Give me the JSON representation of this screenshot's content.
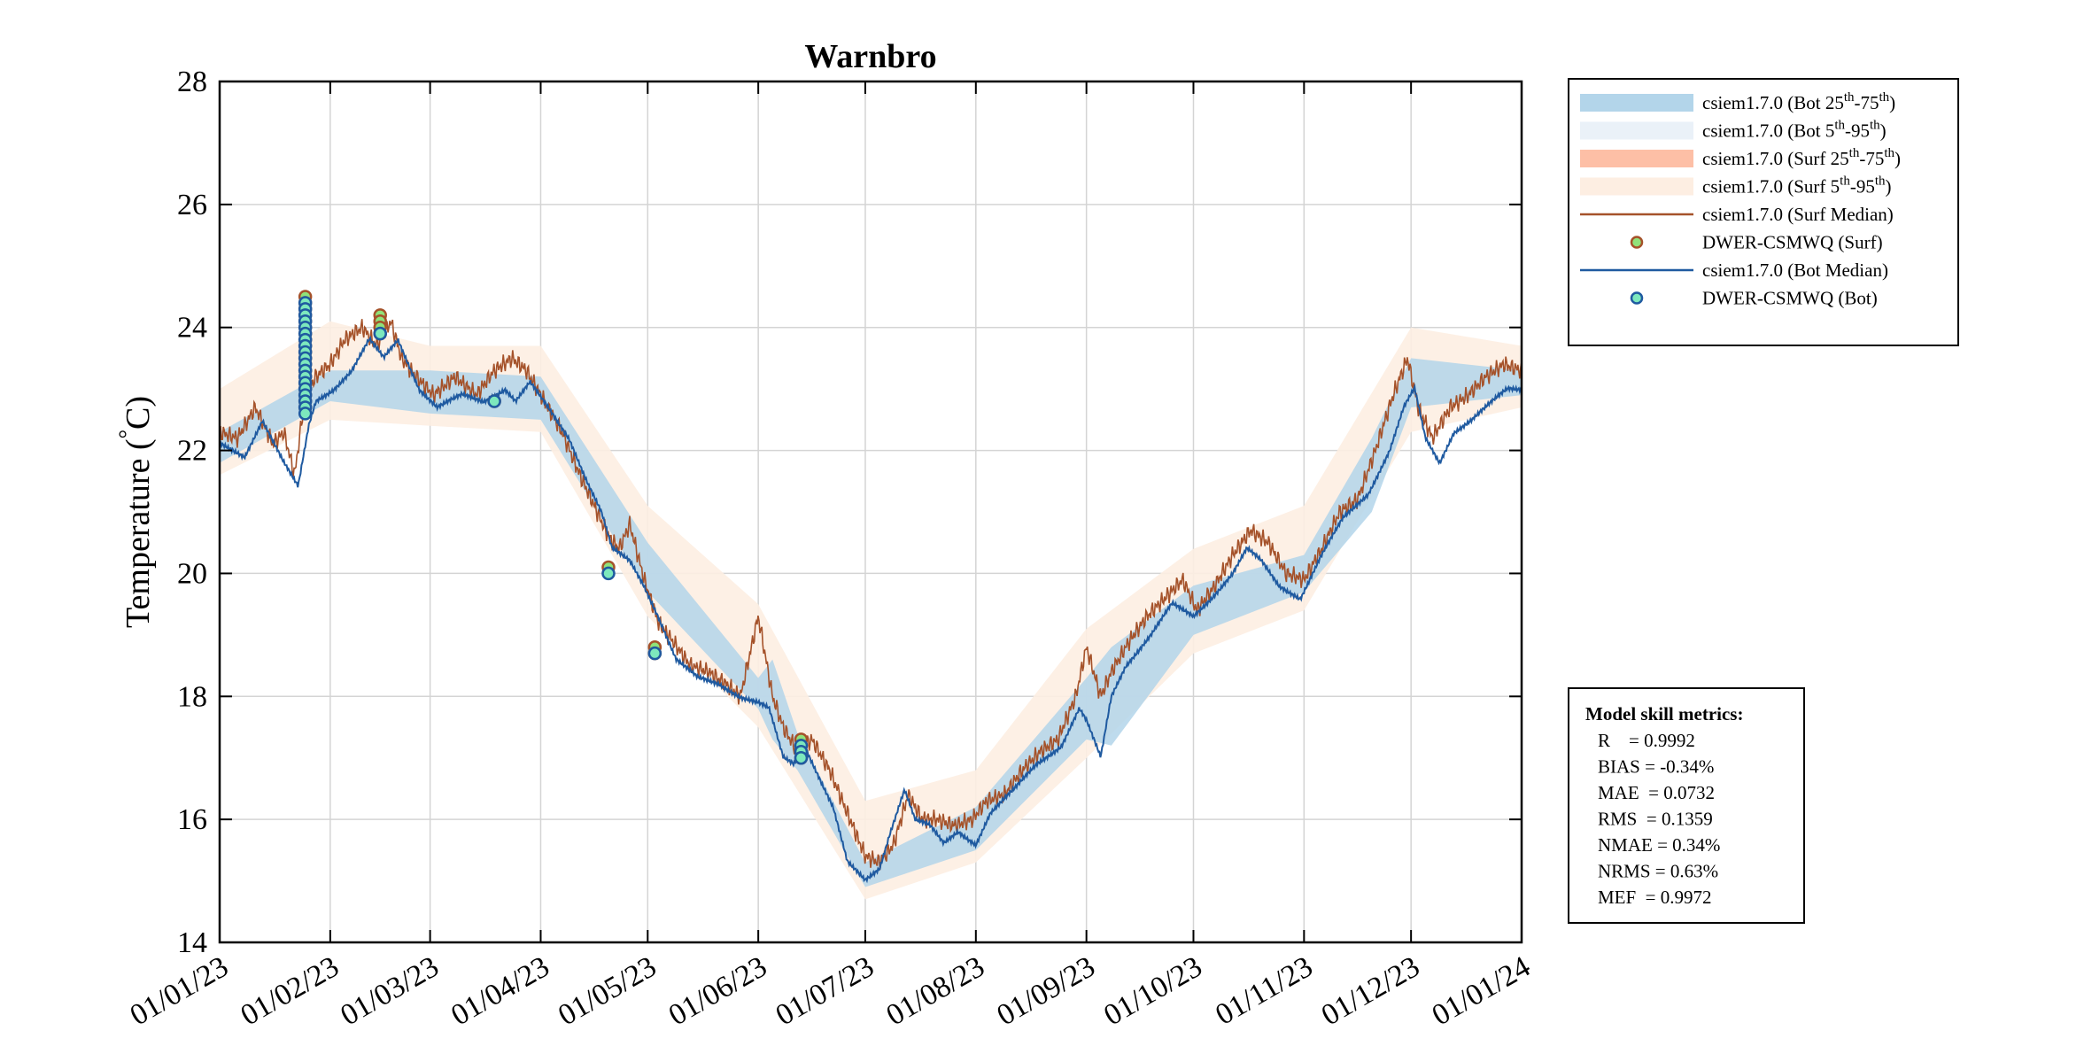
{
  "chart_data": {
    "type": "line",
    "title": "Warnbro",
    "ylabel": "Temperature (°C)",
    "ylabel_parts": {
      "main": "Temperature (",
      "degree": "°",
      "unit": "C)"
    },
    "ylim": [
      14,
      28
    ],
    "yticks": [
      14,
      16,
      18,
      20,
      22,
      24,
      26,
      28
    ],
    "xlim": [
      "2023-01-01",
      "2024-01-01"
    ],
    "xticks": [
      {
        "date": "2023-01-01",
        "label": "01/01/23"
      },
      {
        "date": "2023-02-01",
        "label": "01/02/23"
      },
      {
        "date": "2023-03-01",
        "label": "01/03/23"
      },
      {
        "date": "2023-04-01",
        "label": "01/04/23"
      },
      {
        "date": "2023-05-01",
        "label": "01/05/23"
      },
      {
        "date": "2023-06-01",
        "label": "01/06/23"
      },
      {
        "date": "2023-07-01",
        "label": "01/07/23"
      },
      {
        "date": "2023-08-01",
        "label": "01/08/23"
      },
      {
        "date": "2023-09-01",
        "label": "01/09/23"
      },
      {
        "date": "2023-10-01",
        "label": "01/10/23"
      },
      {
        "date": "2023-11-01",
        "label": "01/11/23"
      },
      {
        "date": "2023-12-01",
        "label": "01/12/23"
      },
      {
        "date": "2024-01-01",
        "label": "01/01/24"
      }
    ],
    "grid": true,
    "legend_position": "outside-top-right",
    "legend": [
      {
        "kind": "band",
        "color": "#b3d5ea",
        "text": "csiem1.7.0 (Bot 25",
        "sup1": "th",
        "mid": "-75",
        "sup2": "th",
        "end": ")"
      },
      {
        "kind": "band",
        "color": "#eaf1f8",
        "text": "csiem1.7.0 (Bot 5",
        "sup1": "th",
        "mid": "-95",
        "sup2": "th",
        "end": ")"
      },
      {
        "kind": "band",
        "color": "#fdbfa6",
        "text": "csiem1.7.0 (Surf 25",
        "sup1": "th",
        "mid": "-75",
        "sup2": "th",
        "end": ")"
      },
      {
        "kind": "band",
        "color": "#fdeee2",
        "text": "csiem1.7.0 (Surf 5",
        "sup1": "th",
        "mid": "-95",
        "sup2": "th",
        "end": ")"
      },
      {
        "kind": "line",
        "color": "#a5522a",
        "text": "csiem1.7.0 (Surf Median)"
      },
      {
        "kind": "marker",
        "edge": "#a5522a",
        "face": "#90e27a",
        "text": "DWER-CSMWQ (Surf)"
      },
      {
        "kind": "line",
        "color": "#1f5aa0",
        "text": "csiem1.7.0 (Bot Median)"
      },
      {
        "kind": "marker",
        "edge": "#1f5aa0",
        "face": "#7de8bd",
        "text": "DWER-CSMWQ (Bot)"
      }
    ],
    "colors": {
      "surf_median": "#a5522a",
      "bot_median": "#1f5aa0",
      "bot_25_75": "#b3d5ea",
      "bot_5_95": "#eaf1f8",
      "surf_25_75": "#fdbfa6",
      "surf_5_95": "#fdeee2",
      "obs_surf_edge": "#a5522a",
      "obs_surf_face": "#90e27a",
      "obs_bot_edge": "#1f5aa0",
      "obs_bot_face": "#7de8bd"
    },
    "series": [
      {
        "id": "bot_median",
        "x": [
          "2023-01-01",
          "2023-01-08",
          "2023-01-13",
          "2023-01-19",
          "2023-01-23",
          "2023-01-26",
          "2023-01-28",
          "2023-02-02",
          "2023-02-07",
          "2023-02-12",
          "2023-02-16",
          "2023-02-20",
          "2023-02-26",
          "2023-03-03",
          "2023-03-10",
          "2023-03-16",
          "2023-03-22",
          "2023-03-25",
          "2023-03-29",
          "2023-04-03",
          "2023-04-09",
          "2023-04-14",
          "2023-04-18",
          "2023-04-21",
          "2023-04-26",
          "2023-04-30",
          "2023-05-04",
          "2023-05-09",
          "2023-05-15",
          "2023-05-21",
          "2023-05-27",
          "2023-06-01",
          "2023-06-04",
          "2023-06-08",
          "2023-06-11",
          "2023-06-14",
          "2023-06-18",
          "2023-06-22",
          "2023-06-26",
          "2023-07-01",
          "2023-07-05",
          "2023-07-08",
          "2023-07-12",
          "2023-07-15",
          "2023-07-19",
          "2023-07-23",
          "2023-07-27",
          "2023-08-01",
          "2023-08-05",
          "2023-08-12",
          "2023-08-18",
          "2023-08-25",
          "2023-08-30",
          "2023-09-01",
          "2023-09-05",
          "2023-09-08",
          "2023-09-12",
          "2023-09-19",
          "2023-09-25",
          "2023-10-01",
          "2023-10-06",
          "2023-10-12",
          "2023-10-16",
          "2023-10-20",
          "2023-10-25",
          "2023-10-31",
          "2023-11-06",
          "2023-11-12",
          "2023-11-19",
          "2023-11-25",
          "2023-11-29",
          "2023-12-02",
          "2023-12-05",
          "2023-12-09",
          "2023-12-13",
          "2023-12-18",
          "2023-12-24",
          "2023-12-28",
          "2024-01-01"
        ],
        "values": [
          22.1,
          21.9,
          22.5,
          21.8,
          21.4,
          22.4,
          22.8,
          23.0,
          23.3,
          23.8,
          23.5,
          23.8,
          23.0,
          22.7,
          22.9,
          22.8,
          23.0,
          22.8,
          23.1,
          22.7,
          22.2,
          21.5,
          21.0,
          20.4,
          20.2,
          19.8,
          19.3,
          18.6,
          18.3,
          18.2,
          18.0,
          17.9,
          17.8,
          17.0,
          16.9,
          17.2,
          16.7,
          16.2,
          15.3,
          15.0,
          15.2,
          15.8,
          16.5,
          16.0,
          15.9,
          15.6,
          15.8,
          15.6,
          16.1,
          16.5,
          16.9,
          17.2,
          17.8,
          17.6,
          17.0,
          18.0,
          18.5,
          19.0,
          19.5,
          19.3,
          19.6,
          20.0,
          20.4,
          20.2,
          19.8,
          19.6,
          20.3,
          20.9,
          21.3,
          22.0,
          22.7,
          23.0,
          22.2,
          21.8,
          22.3,
          22.5,
          22.8,
          23.0,
          23.0
        ]
      },
      {
        "id": "surf_median",
        "x": [
          "2023-01-01",
          "2023-01-06",
          "2023-01-11",
          "2023-01-16",
          "2023-01-19",
          "2023-01-22",
          "2023-01-25",
          "2023-01-28",
          "2023-02-01",
          "2023-02-05",
          "2023-02-10",
          "2023-02-14",
          "2023-02-18",
          "2023-02-21",
          "2023-02-25",
          "2023-03-02",
          "2023-03-08",
          "2023-03-14",
          "2023-03-19",
          "2023-03-24",
          "2023-03-28",
          "2023-04-02",
          "2023-04-07",
          "2023-04-12",
          "2023-04-16",
          "2023-04-20",
          "2023-04-23",
          "2023-04-26",
          "2023-04-30",
          "2023-05-04",
          "2023-05-08",
          "2023-05-13",
          "2023-05-18",
          "2023-05-23",
          "2023-05-27",
          "2023-06-01",
          "2023-06-05",
          "2023-06-08",
          "2023-06-12",
          "2023-06-16",
          "2023-06-21",
          "2023-06-26",
          "2023-07-01",
          "2023-07-05",
          "2023-07-09",
          "2023-07-13",
          "2023-07-17",
          "2023-07-21",
          "2023-07-26",
          "2023-07-31",
          "2023-08-04",
          "2023-08-09",
          "2023-08-14",
          "2023-08-19",
          "2023-08-24",
          "2023-08-29",
          "2023-09-01",
          "2023-09-05",
          "2023-09-08",
          "2023-09-13",
          "2023-09-18",
          "2023-09-23",
          "2023-09-28",
          "2023-10-02",
          "2023-10-07",
          "2023-10-12",
          "2023-10-17",
          "2023-10-22",
          "2023-10-27",
          "2023-11-01",
          "2023-11-06",
          "2023-11-11",
          "2023-11-16",
          "2023-11-21",
          "2023-11-26",
          "2023-11-30",
          "2023-12-03",
          "2023-12-07",
          "2023-12-12",
          "2023-12-17",
          "2023-12-22",
          "2023-12-27",
          "2024-01-01"
        ],
        "values": [
          22.3,
          22.2,
          22.7,
          22.1,
          22.3,
          21.6,
          22.9,
          23.2,
          23.4,
          23.8,
          24.0,
          23.7,
          24.1,
          23.5,
          23.2,
          22.9,
          23.2,
          22.9,
          23.3,
          23.5,
          23.3,
          22.8,
          22.3,
          21.6,
          21.1,
          20.6,
          20.4,
          20.8,
          19.9,
          19.2,
          18.9,
          18.5,
          18.4,
          18.2,
          18.0,
          19.3,
          18.0,
          17.5,
          17.1,
          17.3,
          16.8,
          16.1,
          15.4,
          15.3,
          15.6,
          16.4,
          16.0,
          16.0,
          15.9,
          16.0,
          16.3,
          16.4,
          16.8,
          17.1,
          17.3,
          18.0,
          18.8,
          18.0,
          18.4,
          18.9,
          19.3,
          19.6,
          19.9,
          19.4,
          19.8,
          20.3,
          20.7,
          20.5,
          20.0,
          19.9,
          20.4,
          21.0,
          21.2,
          22.0,
          22.9,
          23.5,
          22.7,
          22.2,
          22.7,
          22.9,
          23.2,
          23.4,
          23.3
        ]
      },
      {
        "id": "bot_25_75",
        "x": [
          "2023-01-01",
          "2023-02-01",
          "2023-03-01",
          "2023-04-01",
          "2023-05-01",
          "2023-06-01",
          "2023-06-05",
          "2023-06-12",
          "2023-07-01",
          "2023-08-01",
          "2023-09-01",
          "2023-09-08",
          "2023-10-01",
          "2023-11-01",
          "2023-11-20",
          "2023-12-01",
          "2024-01-01"
        ],
        "lower": [
          21.8,
          22.8,
          22.6,
          22.5,
          19.7,
          17.8,
          17.3,
          16.8,
          14.9,
          15.5,
          17.3,
          17.2,
          19.0,
          19.7,
          21.0,
          22.7,
          22.9
        ],
        "upper": [
          22.3,
          23.3,
          23.3,
          23.2,
          20.5,
          18.3,
          18.6,
          17.4,
          15.3,
          16.2,
          18.3,
          18.8,
          19.8,
          20.3,
          22.2,
          23.5,
          23.3
        ]
      },
      {
        "id": "surf_5_95",
        "x": [
          "2023-01-01",
          "2023-02-01",
          "2023-03-01",
          "2023-04-01",
          "2023-05-01",
          "2023-06-01",
          "2023-07-01",
          "2023-08-01",
          "2023-09-01",
          "2023-10-01",
          "2023-11-01",
          "2023-12-01",
          "2024-01-01"
        ],
        "lower": [
          21.6,
          22.5,
          22.4,
          22.3,
          19.3,
          17.5,
          14.7,
          15.3,
          17.0,
          18.7,
          19.4,
          22.3,
          22.7
        ],
        "upper": [
          23.0,
          24.1,
          23.7,
          23.7,
          21.1,
          19.5,
          16.3,
          16.8,
          19.1,
          20.4,
          21.1,
          24.0,
          23.7
        ]
      }
    ],
    "observations": {
      "surf": [
        {
          "x": "2023-01-25",
          "values": [
            24.5,
            24.4,
            24.3,
            24.2,
            24.1,
            24.0,
            23.9,
            23.8,
            23.7,
            23.6,
            23.5,
            23.4,
            23.3,
            23.2,
            23.1,
            23.0,
            22.9,
            22.8,
            22.7
          ]
        },
        {
          "x": "2023-02-15",
          "values": [
            24.2,
            24.1,
            24.0,
            23.9
          ]
        },
        {
          "x": "2023-03-19",
          "values": [
            22.8
          ]
        },
        {
          "x": "2023-04-20",
          "values": [
            20.1
          ]
        },
        {
          "x": "2023-05-03",
          "values": [
            18.8,
            18.7
          ]
        },
        {
          "x": "2023-06-13",
          "values": [
            17.3,
            17.2,
            17.1,
            17.0
          ]
        }
      ],
      "bot": [
        {
          "x": "2023-01-25",
          "values": [
            24.4,
            24.3,
            24.2,
            24.1,
            24.0,
            23.9,
            23.8,
            23.7,
            23.6,
            23.5,
            23.4,
            23.3,
            23.2,
            23.1,
            23.0,
            22.9,
            22.8,
            22.7,
            22.6
          ]
        },
        {
          "x": "2023-02-15",
          "values": [
            23.9
          ]
        },
        {
          "x": "2023-03-19",
          "values": [
            22.8
          ]
        },
        {
          "x": "2023-04-20",
          "values": [
            20.0
          ]
        },
        {
          "x": "2023-05-03",
          "values": [
            18.7
          ]
        },
        {
          "x": "2023-06-13",
          "values": [
            17.2,
            17.1,
            17.0
          ]
        }
      ]
    }
  },
  "metrics": {
    "title": "Model skill metrics:",
    "lines": [
      "R    = 0.9992",
      "BIAS = -0.34%",
      "MAE  = 0.0732",
      "RMS  = 0.1359",
      "NMAE = 0.34%",
      "NRMS = 0.63%",
      "MEF  = 0.9972"
    ]
  }
}
